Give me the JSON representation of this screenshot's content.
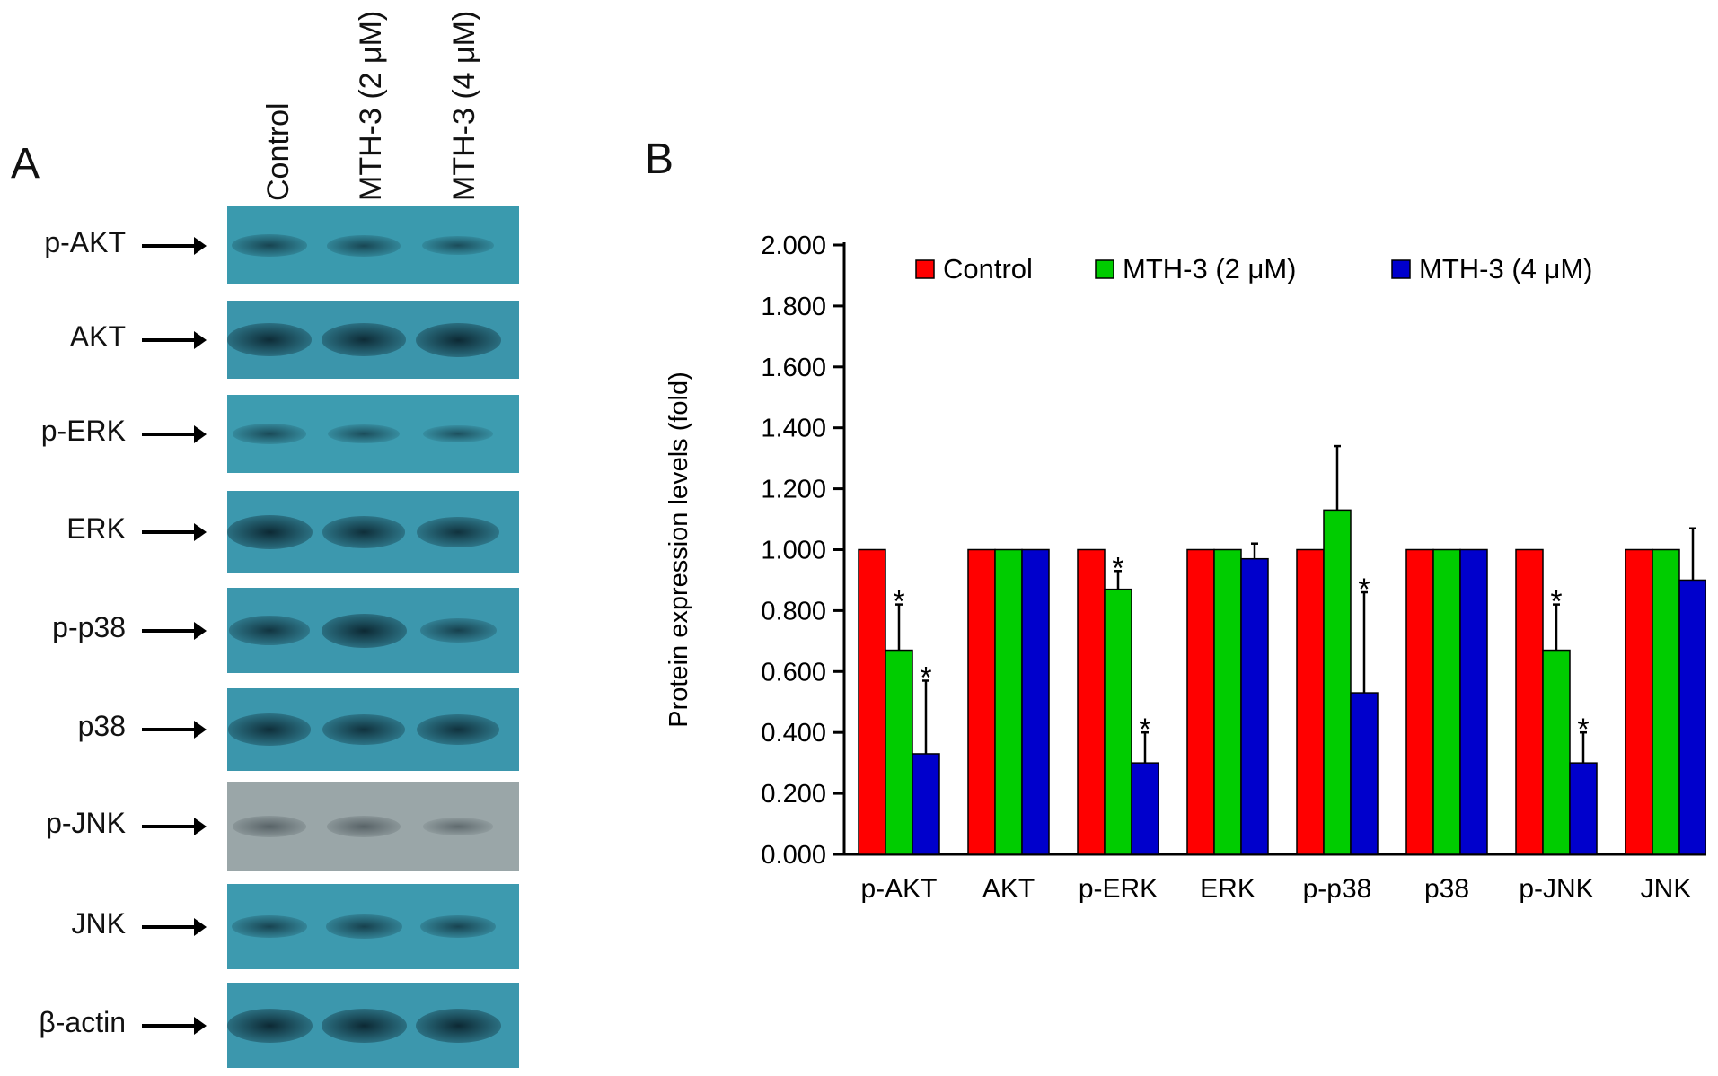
{
  "panels": {
    "a": "A",
    "b": "B"
  },
  "western_blot": {
    "lanes": [
      "Control",
      "MTH-3 (2 μM)",
      "MTH-3 (4 μM)"
    ],
    "rows": [
      {
        "label": "p-AKT",
        "bg": "#3a9aae",
        "intensity": [
          0.55,
          0.5,
          0.4
        ]
      },
      {
        "label": "AKT",
        "bg": "#3b95ab",
        "intensity": [
          0.95,
          0.95,
          1.0
        ]
      },
      {
        "label": "p-ERK",
        "bg": "#3d9cb0",
        "intensity": [
          0.45,
          0.4,
          0.35
        ]
      },
      {
        "label": "ERK",
        "bg": "#3c98ae",
        "intensity": [
          1.0,
          0.9,
          0.85
        ]
      },
      {
        "label": "p-p38",
        "bg": "#3c97ad",
        "intensity": [
          0.8,
          1.0,
          0.6
        ]
      },
      {
        "label": "p38",
        "bg": "#3b96ac",
        "intensity": [
          0.9,
          0.85,
          0.85
        ]
      },
      {
        "label": "p-JNK",
        "bg": "#9aa6a8",
        "intensity": [
          0.5,
          0.5,
          0.35
        ]
      },
      {
        "label": "JNK",
        "bg": "#3d9aaf",
        "intensity": [
          0.55,
          0.6,
          0.55
        ]
      },
      {
        "label": "β-actin",
        "bg": "#3c97ad",
        "intensity": [
          1.0,
          1.0,
          1.0
        ]
      }
    ]
  },
  "chart_data": {
    "type": "bar",
    "ylabel": "Protein expression levels (fold)",
    "xlabel": "",
    "ylim": [
      0,
      2
    ],
    "yticks": [
      "0.000",
      "0.200",
      "0.400",
      "0.600",
      "0.800",
      "1.000",
      "1.200",
      "1.400",
      "1.600",
      "1.800",
      "2.000"
    ],
    "categories": [
      "p-AKT",
      "AKT",
      "p-ERK",
      "ERK",
      "p-p38",
      "p38",
      "p-JNK",
      "JNK"
    ],
    "legend_position": "top",
    "series": [
      {
        "name": "Control",
        "color": "#ff0000",
        "values": [
          1.0,
          1.0,
          1.0,
          1.0,
          1.0,
          1.0,
          1.0,
          1.0
        ],
        "errors": [
          0,
          0,
          0,
          0,
          0,
          0,
          0,
          0
        ],
        "significant": [
          false,
          false,
          false,
          false,
          false,
          false,
          false,
          false
        ]
      },
      {
        "name": "MTH-3 (2 μM)",
        "color": "#00cc00",
        "values": [
          0.67,
          1.0,
          0.87,
          1.0,
          1.13,
          1.0,
          0.67,
          1.0
        ],
        "errors": [
          0.15,
          0,
          0.06,
          0,
          0.21,
          0,
          0.15,
          0
        ],
        "significant": [
          true,
          false,
          true,
          false,
          false,
          false,
          true,
          false
        ]
      },
      {
        "name": "MTH-3 (4 μM)",
        "color": "#0000cc",
        "values": [
          0.33,
          1.0,
          0.3,
          0.97,
          0.53,
          1.0,
          0.3,
          0.9
        ],
        "errors": [
          0.24,
          0,
          0.1,
          0.05,
          0.33,
          0,
          0.1,
          0.17
        ],
        "significant": [
          true,
          false,
          true,
          false,
          true,
          false,
          true,
          false
        ]
      }
    ],
    "significance_marker": "*"
  }
}
